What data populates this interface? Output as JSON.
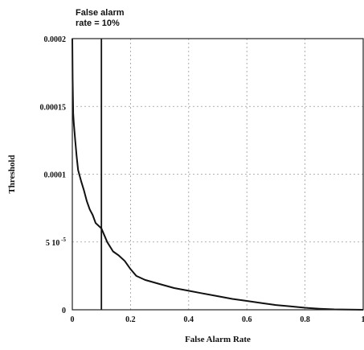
{
  "chart_data": {
    "type": "line",
    "xlabel": "False Alarm Rate",
    "ylabel": "Threshold",
    "xlim": [
      0,
      1
    ],
    "ylim": [
      0,
      0.0002
    ],
    "x_ticks": [
      {
        "value": 0,
        "label": "0"
      },
      {
        "value": 0.2,
        "label": "0.2"
      },
      {
        "value": 0.4,
        "label": "0.4"
      },
      {
        "value": 0.6,
        "label": "0.6"
      },
      {
        "value": 0.8,
        "label": "0.8"
      },
      {
        "value": 1,
        "label": "1"
      }
    ],
    "y_ticks": [
      {
        "value": 0,
        "label": "0"
      },
      {
        "value": 5e-05,
        "label": "5 10",
        "exponent": "-5"
      },
      {
        "value": 0.0001,
        "label": "0.0001"
      },
      {
        "value": 0.00015,
        "label": "0.00015"
      },
      {
        "value": 0.0002,
        "label": "0.0002"
      }
    ],
    "grid": true,
    "annotation": {
      "x": 0.1,
      "lines": [
        "False alarm",
        "rate = 10%"
      ]
    },
    "series": [
      {
        "x": [
          0,
          0.001,
          0.003,
          0.005,
          0.01,
          0.015,
          0.02,
          0.03,
          0.04,
          0.05,
          0.06,
          0.07,
          0.08,
          0.09,
          0.1,
          0.11,
          0.12,
          0.14,
          0.16,
          0.18,
          0.2,
          0.22,
          0.25,
          0.3,
          0.35,
          0.4,
          0.45,
          0.5,
          0.55,
          0.6,
          0.65,
          0.7,
          0.75,
          0.8,
          0.85,
          0.9,
          0.95,
          1.0
        ],
        "y": [
          0.0002,
          0.00017,
          0.000145,
          0.000138,
          0.000125,
          0.000113,
          0.000103,
          9.5e-05,
          8.8e-05,
          8e-05,
          7.4e-05,
          7e-05,
          6.4e-05,
          6.2e-05,
          6e-05,
          5.5e-05,
          5e-05,
          4.3e-05,
          4e-05,
          3.6e-05,
          3e-05,
          2.5e-05,
          2.2e-05,
          1.9e-05,
          1.6e-05,
          1.4e-05,
          1.2e-05,
          1e-05,
          8e-06,
          6.5e-06,
          5e-06,
          3.5e-06,
          2.5e-06,
          1.5e-06,
          8e-07,
          3e-07,
          1e-07,
          0
        ]
      }
    ]
  }
}
